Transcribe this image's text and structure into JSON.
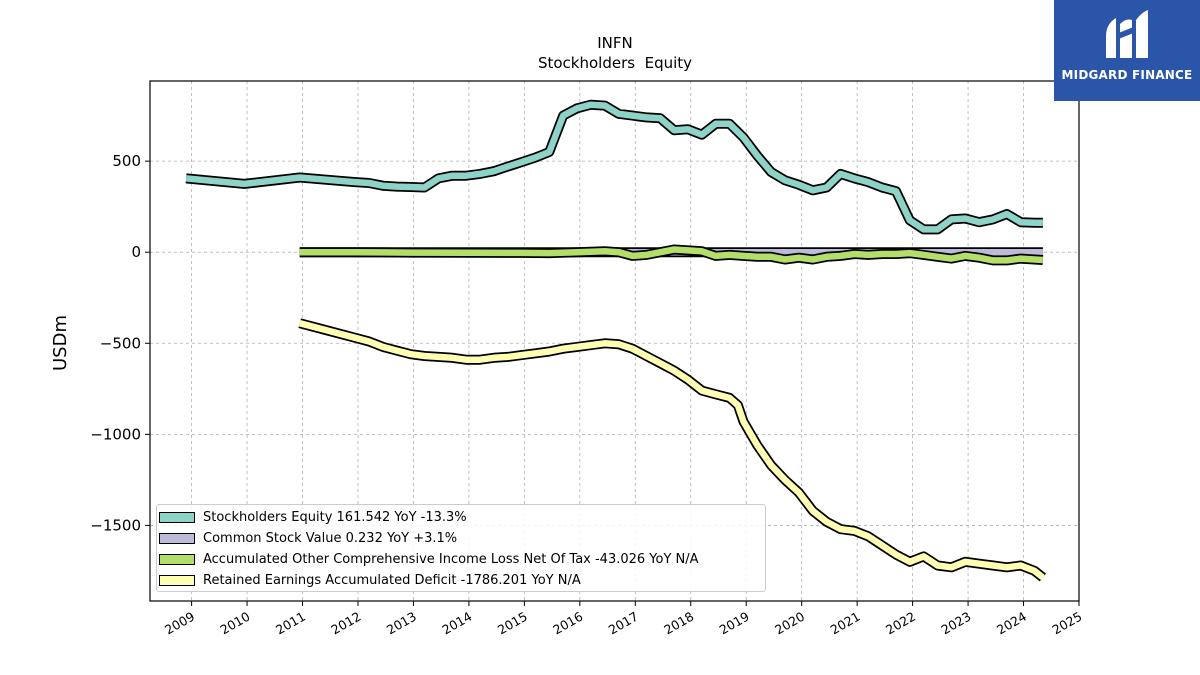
{
  "chart_data": {
    "type": "line",
    "title": "INFN",
    "subtitle": "Stockholders  Equity",
    "ylabel": "USDm",
    "xlabel": "",
    "xlim": [
      2008.25,
      2025.0
    ],
    "ylim": [
      -1915,
      940
    ],
    "x_ticks": [
      2009,
      2010,
      2011,
      2012,
      2013,
      2014,
      2015,
      2016,
      2017,
      2018,
      2019,
      2020,
      2021,
      2022,
      2023,
      2024,
      2025
    ],
    "y_ticks": [
      500,
      0,
      -500,
      -1000,
      -1500
    ],
    "y_tick_labels": [
      "500",
      "0",
      "−500",
      "−1000",
      "−1500"
    ],
    "grid": true,
    "legend_position": "lower-left",
    "series": [
      {
        "name": "Stockholders Equity",
        "legend_label": "Stockholders Equity  161.542 YoY -13.3%",
        "color": "#8dd3c7",
        "x": [
          2008.9,
          2009.95,
          2010.95,
          2011.95,
          2012.2,
          2012.45,
          2012.7,
          2012.95,
          2013.2,
          2013.45,
          2013.7,
          2013.95,
          2014.2,
          2014.45,
          2014.7,
          2014.95,
          2015.2,
          2015.45,
          2015.7,
          2015.95,
          2016.2,
          2016.45,
          2016.7,
          2016.95,
          2017.2,
          2017.45,
          2017.7,
          2017.95,
          2018.2,
          2018.45,
          2018.7,
          2018.95,
          2019.2,
          2019.45,
          2019.7,
          2019.95,
          2020.2,
          2020.45,
          2020.7,
          2020.95,
          2021.2,
          2021.45,
          2021.7,
          2021.95,
          2022.2,
          2022.45,
          2022.7,
          2022.95,
          2023.2,
          2023.45,
          2023.7,
          2023.95,
          2024.2,
          2024.35
        ],
        "values": [
          405,
          375,
          410,
          385,
          380,
          365,
          360,
          358,
          355,
          405,
          420,
          420,
          430,
          445,
          470,
          495,
          520,
          550,
          750,
          790,
          810,
          805,
          760,
          750,
          740,
          735,
          670,
          675,
          645,
          705,
          705,
          630,
          530,
          440,
          395,
          370,
          340,
          355,
          430,
          405,
          385,
          355,
          335,
          175,
          125,
          125,
          180,
          185,
          165,
          180,
          210,
          165,
          162,
          162
        ]
      },
      {
        "name": "Common Stock Value",
        "legend_label": "Common Stock Value  0.232 YoY +3.1%",
        "color": "#bebada",
        "x": [
          2010.95,
          2024.35
        ],
        "values": [
          0.2,
          0.232
        ]
      },
      {
        "name": "Accumulated Other Comprehensive Income Loss Net Of Tax",
        "legend_label": "Accumulated Other Comprehensive Income Loss Net Of Tax  -43.026 YoY N/A",
        "color": "#b3de69",
        "x": [
          2010.95,
          2011.95,
          2012.95,
          2013.95,
          2014.95,
          2015.45,
          2015.95,
          2016.2,
          2016.45,
          2016.7,
          2016.95,
          2017.2,
          2017.45,
          2017.7,
          2017.95,
          2018.2,
          2018.45,
          2018.7,
          2018.95,
          2019.2,
          2019.45,
          2019.7,
          2019.95,
          2020.2,
          2020.45,
          2020.7,
          2020.95,
          2021.2,
          2021.45,
          2021.7,
          2021.95,
          2022.2,
          2022.45,
          2022.7,
          2022.95,
          2023.2,
          2023.45,
          2023.7,
          2023.95,
          2024.2,
          2024.35
        ],
        "values": [
          0,
          0,
          -2,
          -3,
          -4,
          -5,
          0,
          2,
          5,
          0,
          -20,
          -15,
          0,
          15,
          10,
          5,
          -20,
          -15,
          -20,
          -25,
          -25,
          -40,
          -30,
          -40,
          -25,
          -20,
          -10,
          -15,
          -10,
          -10,
          -5,
          -15,
          -25,
          -35,
          -20,
          -30,
          -45,
          -45,
          -35,
          -40,
          -43
        ]
      },
      {
        "name": "Retained Earnings Accumulated Deficit",
        "legend_label": "Retained Earnings Accumulated Deficit  -1786.201 YoY N/A",
        "color": "#ffffb3",
        "x": [
          2010.95,
          2011.45,
          2011.95,
          2012.2,
          2012.45,
          2012.7,
          2012.95,
          2013.2,
          2013.45,
          2013.7,
          2013.95,
          2014.2,
          2014.45,
          2014.7,
          2014.95,
          2015.2,
          2015.45,
          2015.7,
          2015.95,
          2016.2,
          2016.45,
          2016.7,
          2016.95,
          2017.2,
          2017.45,
          2017.7,
          2017.95,
          2018.2,
          2018.45,
          2018.7,
          2018.85,
          2018.95,
          2019.2,
          2019.45,
          2019.7,
          2019.95,
          2020.2,
          2020.45,
          2020.7,
          2020.95,
          2021.2,
          2021.45,
          2021.7,
          2021.95,
          2022.2,
          2022.45,
          2022.7,
          2022.95,
          2023.2,
          2023.45,
          2023.7,
          2023.95,
          2024.2,
          2024.35
        ],
        "values": [
          -390,
          -430,
          -470,
          -490,
          -520,
          -540,
          -560,
          -570,
          -575,
          -580,
          -590,
          -590,
          -580,
          -575,
          -565,
          -555,
          -545,
          -530,
          -520,
          -510,
          -500,
          -505,
          -530,
          -570,
          -610,
          -650,
          -700,
          -760,
          -780,
          -800,
          -840,
          -930,
          -1060,
          -1170,
          -1250,
          -1320,
          -1420,
          -1480,
          -1520,
          -1530,
          -1560,
          -1610,
          -1660,
          -1700,
          -1670,
          -1720,
          -1730,
          -1700,
          -1710,
          -1720,
          -1730,
          -1720,
          -1750,
          -1786
        ]
      }
    ]
  },
  "logo": {
    "text": "MIDGARD FINANCE",
    "background": "#2a55a8",
    "icon": "midgard-logo-icon"
  }
}
